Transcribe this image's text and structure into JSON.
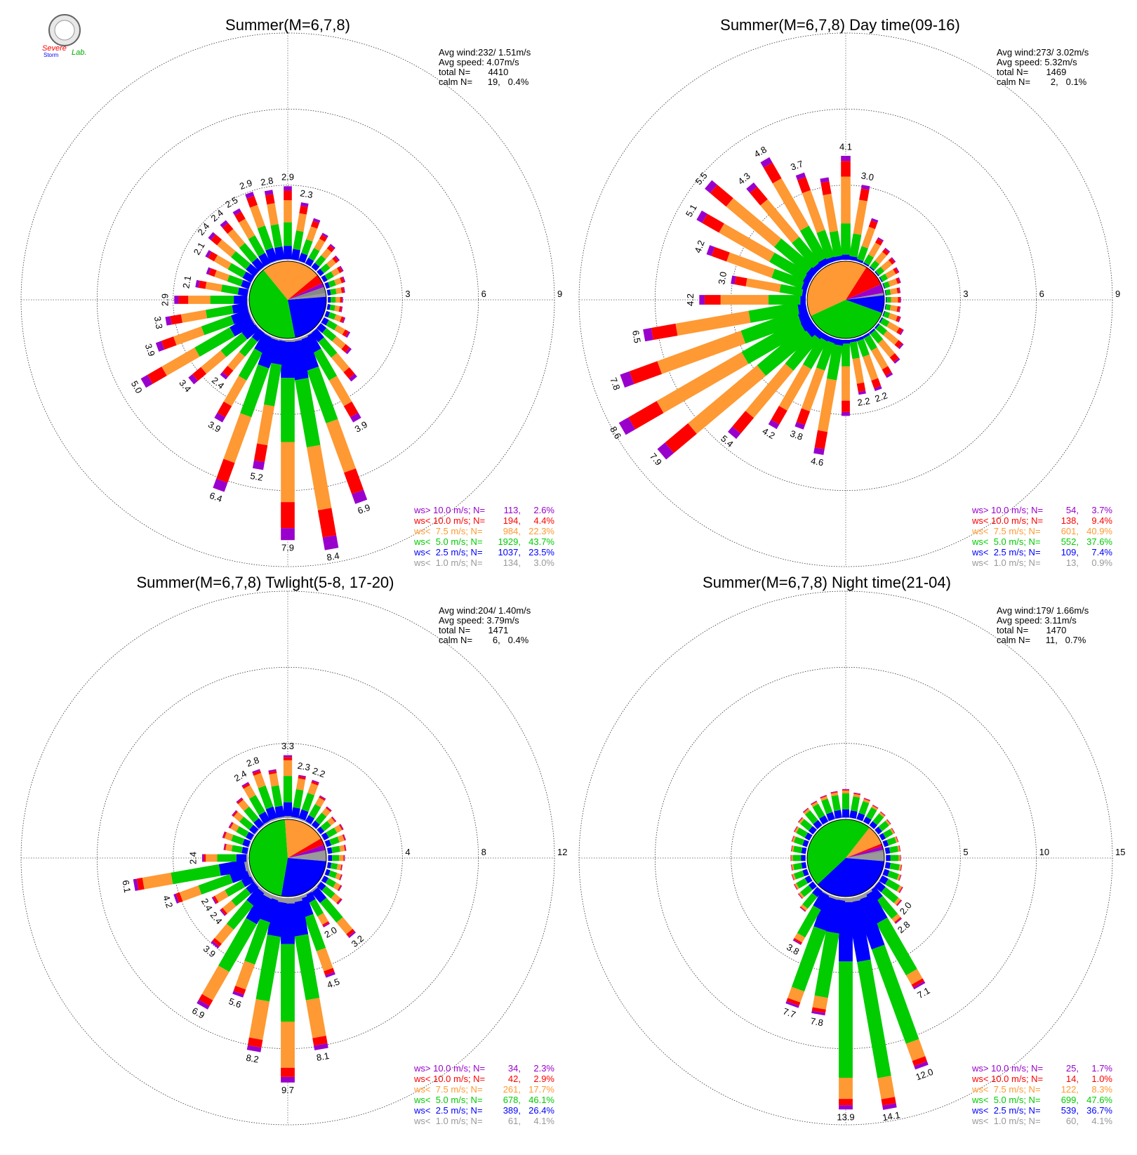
{
  "logo": {
    "line1": "Severe",
    "line2": "Storm",
    "line3": "Lab."
  },
  "colors": {
    "calm": "#888888",
    "ws_lt1": "#999999",
    "ws_lt2_5": "#0000ff",
    "ws_lt5": "#00cc00",
    "ws_lt7_5": "#ff9933",
    "ws_lt10": "#ff0000",
    "ws_gt10": "#9900cc",
    "ring": "#000000"
  },
  "legend_labels": [
    "ws> 10.0 m/s; N=",
    "ws< 10.0 m/s; N=",
    "ws<  7.5 m/s; N=",
    "ws<  5.0 m/s; N=",
    "ws<  2.5 m/s; N=",
    "ws<  1.0 m/s; N="
  ],
  "chart_data": [
    {
      "type": "windrose",
      "title": "Summer(M=6,7,8)",
      "rings": [
        3,
        6,
        9
      ],
      "stats": [
        "Avg wind:232/ 1.51m/s",
        "Avg speed: 4.07m/s",
        "total N=       4410",
        "calm N=      19,   0.4%"
      ],
      "legend": [
        {
          "n": "113,",
          "pct": "2.6%"
        },
        {
          "n": "194,",
          "pct": "4.4%"
        },
        {
          "n": "984,",
          "pct": "22.3%"
        },
        {
          "n": "1929,",
          "pct": "43.7%"
        },
        {
          "n": "1037,",
          "pct": "23.5%"
        },
        {
          "n": "134,",
          "pct": "3.0%"
        }
      ],
      "pie": [
        0.015,
        0.232,
        0.422,
        0.248,
        0.039,
        0.018,
        0.026
      ],
      "directions": [
        0,
        10,
        20,
        30,
        40,
        50,
        60,
        70,
        80,
        90,
        100,
        110,
        120,
        130,
        140,
        150,
        160,
        170,
        180,
        190,
        200,
        210,
        220,
        230,
        240,
        250,
        260,
        270,
        280,
        290,
        300,
        310,
        320,
        330,
        340,
        350
      ],
      "totals": [
        2.9,
        2.3,
        1.8,
        1.4,
        1.2,
        1.0,
        0.9,
        0.8,
        0.7,
        0.6,
        0.6,
        0.8,
        1.2,
        1.6,
        2.5,
        3.9,
        6.9,
        8.4,
        7.9,
        5.2,
        6.4,
        3.9,
        2.4,
        3.4,
        5.0,
        3.9,
        3.3,
        2.9,
        2.1,
        1.8,
        2.1,
        2.4,
        2.4,
        2.5,
        2.9,
        2.8
      ],
      "labels": [
        "2.9",
        "2.3",
        "",
        "",
        "",
        "",
        "",
        "",
        "",
        "",
        "",
        "",
        "",
        "",
        "",
        "3.9",
        "6.9",
        "8.4",
        "7.9",
        "5.2",
        "6.4",
        "3.9",
        "2.4",
        "3.4",
        "5.0",
        "3.9",
        "3.3",
        "2.9",
        "2.1",
        "",
        "2.1",
        "2.4",
        "2.4",
        "2.5",
        "2.9",
        "2.8"
      ],
      "shares": [
        0.01,
        0.18,
        0.32,
        0.3,
        0.13,
        0.06
      ]
    },
    {
      "type": "windrose",
      "title": "Summer(M=6,7,8) Day time(09-16)",
      "rings": [
        3,
        6,
        9
      ],
      "stats": [
        "Avg wind:273/ 3.02m/s",
        "Avg speed: 5.32m/s",
        "total N=       1469",
        "calm N=        2,   0.1%"
      ],
      "legend": [
        {
          "n": "54,",
          "pct": "3.7%"
        },
        {
          "n": "138,",
          "pct": "9.4%"
        },
        {
          "n": "601,",
          "pct": "40.9%"
        },
        {
          "n": "552,",
          "pct": "37.6%"
        },
        {
          "n": "109,",
          "pct": "7.4%"
        },
        {
          "n": "13,",
          "pct": "0.9%"
        }
      ],
      "pie": [
        0.009,
        0.074,
        0.376,
        0.409,
        0.094,
        0.037,
        0.001
      ],
      "directions": [
        0,
        10,
        20,
        30,
        40,
        50,
        60,
        70,
        80,
        90,
        100,
        110,
        120,
        130,
        140,
        150,
        160,
        170,
        180,
        190,
        200,
        210,
        220,
        230,
        240,
        250,
        260,
        270,
        280,
        290,
        300,
        310,
        320,
        330,
        340,
        350
      ],
      "totals": [
        4.1,
        3.0,
        1.8,
        1.2,
        1.0,
        0.9,
        0.8,
        0.7,
        0.6,
        0.6,
        0.6,
        0.7,
        1.0,
        1.3,
        1.6,
        1.9,
        2.2,
        2.2,
        3.0,
        4.6,
        3.8,
        4.2,
        5.4,
        7.9,
        8.6,
        7.8,
        6.5,
        4.2,
        3.0,
        4.2,
        5.1,
        5.5,
        4.3,
        4.8,
        3.7,
        3.3
      ],
      "labels": [
        "4.1",
        "3.0",
        "",
        "",
        "",
        "",
        "",
        "",
        "",
        "",
        "",
        "",
        "",
        "",
        "",
        "",
        "2.2",
        "2.2",
        "",
        "4.6",
        "3.8",
        "4.2",
        "5.4",
        "7.9",
        "8.6",
        "7.8",
        "6.5",
        "4.2",
        "3.0",
        "4.2",
        "5.1",
        "5.5",
        "4.3",
        "4.8",
        "3.7",
        ""
      ],
      "shares": [
        0.0,
        0.05,
        0.3,
        0.45,
        0.15,
        0.05
      ]
    },
    {
      "type": "windrose",
      "title": "Summer(M=6,7,8) Twlight(5-8, 17-20)",
      "rings": [
        4,
        8,
        12
      ],
      "stats": [
        "Avg wind:204/ 1.40m/s",
        "Avg speed: 3.79m/s",
        "total N=       1471",
        "calm N=        6,   0.4%"
      ],
      "legend": [
        {
          "n": "34,",
          "pct": "2.3%"
        },
        {
          "n": "42,",
          "pct": "2.9%"
        },
        {
          "n": "261,",
          "pct": "17.7%"
        },
        {
          "n": "678,",
          "pct": "46.1%"
        },
        {
          "n": "389,",
          "pct": "26.4%"
        },
        {
          "n": "61,",
          "pct": "4.1%"
        }
      ],
      "pie": [
        0.041,
        0.264,
        0.461,
        0.177,
        0.029,
        0.023,
        0.005
      ],
      "directions": [
        0,
        10,
        20,
        30,
        40,
        50,
        60,
        70,
        80,
        90,
        100,
        110,
        120,
        130,
        140,
        150,
        160,
        170,
        180,
        190,
        200,
        210,
        220,
        230,
        240,
        250,
        260,
        270,
        280,
        290,
        300,
        310,
        320,
        330,
        340,
        350
      ],
      "totals": [
        3.3,
        2.3,
        2.2,
        1.6,
        1.3,
        1.1,
        1.2,
        1.1,
        1.0,
        0.9,
        0.8,
        0.9,
        1.1,
        1.5,
        3.2,
        2.0,
        4.5,
        8.1,
        9.7,
        8.2,
        5.6,
        6.9,
        3.9,
        2.4,
        2.4,
        4.2,
        6.1,
        2.4,
        1.3,
        1.5,
        1.4,
        1.6,
        1.9,
        2.4,
        2.8,
        2.6
      ],
      "labels": [
        "3.3",
        "2.3",
        "2.2",
        "",
        "",
        "",
        "",
        "",
        "",
        "",
        "",
        "",
        "",
        "",
        "3.2",
        "2.0",
        "4.5",
        "8.1",
        "9.7",
        "8.2",
        "5.6",
        "6.9",
        "3.9",
        "2.4",
        "2.4",
        "4.2",
        "6.1",
        "2.4",
        "",
        "",
        "",
        "",
        "",
        "2.4",
        "2.8",
        ""
      ],
      "shares": [
        0.03,
        0.22,
        0.42,
        0.25,
        0.05,
        0.03
      ]
    },
    {
      "type": "windrose",
      "title": "Summer(M=6,7,8) Night time(21-04)",
      "rings": [
        5,
        10,
        15
      ],
      "stats": [
        "Avg wind:179/ 1.66m/s",
        "Avg speed: 3.11m/s",
        "total N=       1470",
        "calm N=      11,   0.7%"
      ],
      "legend": [
        {
          "n": "25,",
          "pct": "1.7%"
        },
        {
          "n": "14,",
          "pct": "1.0%"
        },
        {
          "n": "122,",
          "pct": "8.3%"
        },
        {
          "n": "699,",
          "pct": "47.6%"
        },
        {
          "n": "539,",
          "pct": "36.7%"
        },
        {
          "n": "60,",
          "pct": "4.1%"
        }
      ],
      "pie": [
        0.041,
        0.367,
        0.476,
        0.083,
        0.01,
        0.017,
        0.007
      ],
      "directions": [
        0,
        10,
        20,
        30,
        40,
        50,
        60,
        70,
        80,
        90,
        100,
        110,
        120,
        130,
        140,
        150,
        160,
        170,
        180,
        190,
        200,
        210,
        220,
        230,
        240,
        250,
        260,
        270,
        280,
        290,
        300,
        310,
        320,
        330,
        340,
        350
      ],
      "totals": [
        1.9,
        1.7,
        1.5,
        1.3,
        1.2,
        1.1,
        1.0,
        1.0,
        1.0,
        1.0,
        1.1,
        1.2,
        1.6,
        2.0,
        2.8,
        7.1,
        12.0,
        14.1,
        13.9,
        7.8,
        7.7,
        3.8,
        1.8,
        1.3,
        1.2,
        1.1,
        1.0,
        1.0,
        1.0,
        1.1,
        1.2,
        1.3,
        1.5,
        1.6,
        1.7,
        1.8
      ],
      "labels": [
        "",
        "",
        "",
        "",
        "",
        "",
        "",
        "",
        "",
        "",
        "",
        "",
        "",
        "2.0",
        "2.8",
        "7.1",
        "12.0",
        "14.1",
        "13.9",
        "7.8",
        "7.7",
        "3.8",
        "",
        "",
        "",
        "",
        "",
        "",
        "",
        "",
        "",
        "",
        "",
        "",
        "",
        ""
      ],
      "shares": [
        0.02,
        0.28,
        0.55,
        0.1,
        0.03,
        0.02
      ]
    }
  ]
}
